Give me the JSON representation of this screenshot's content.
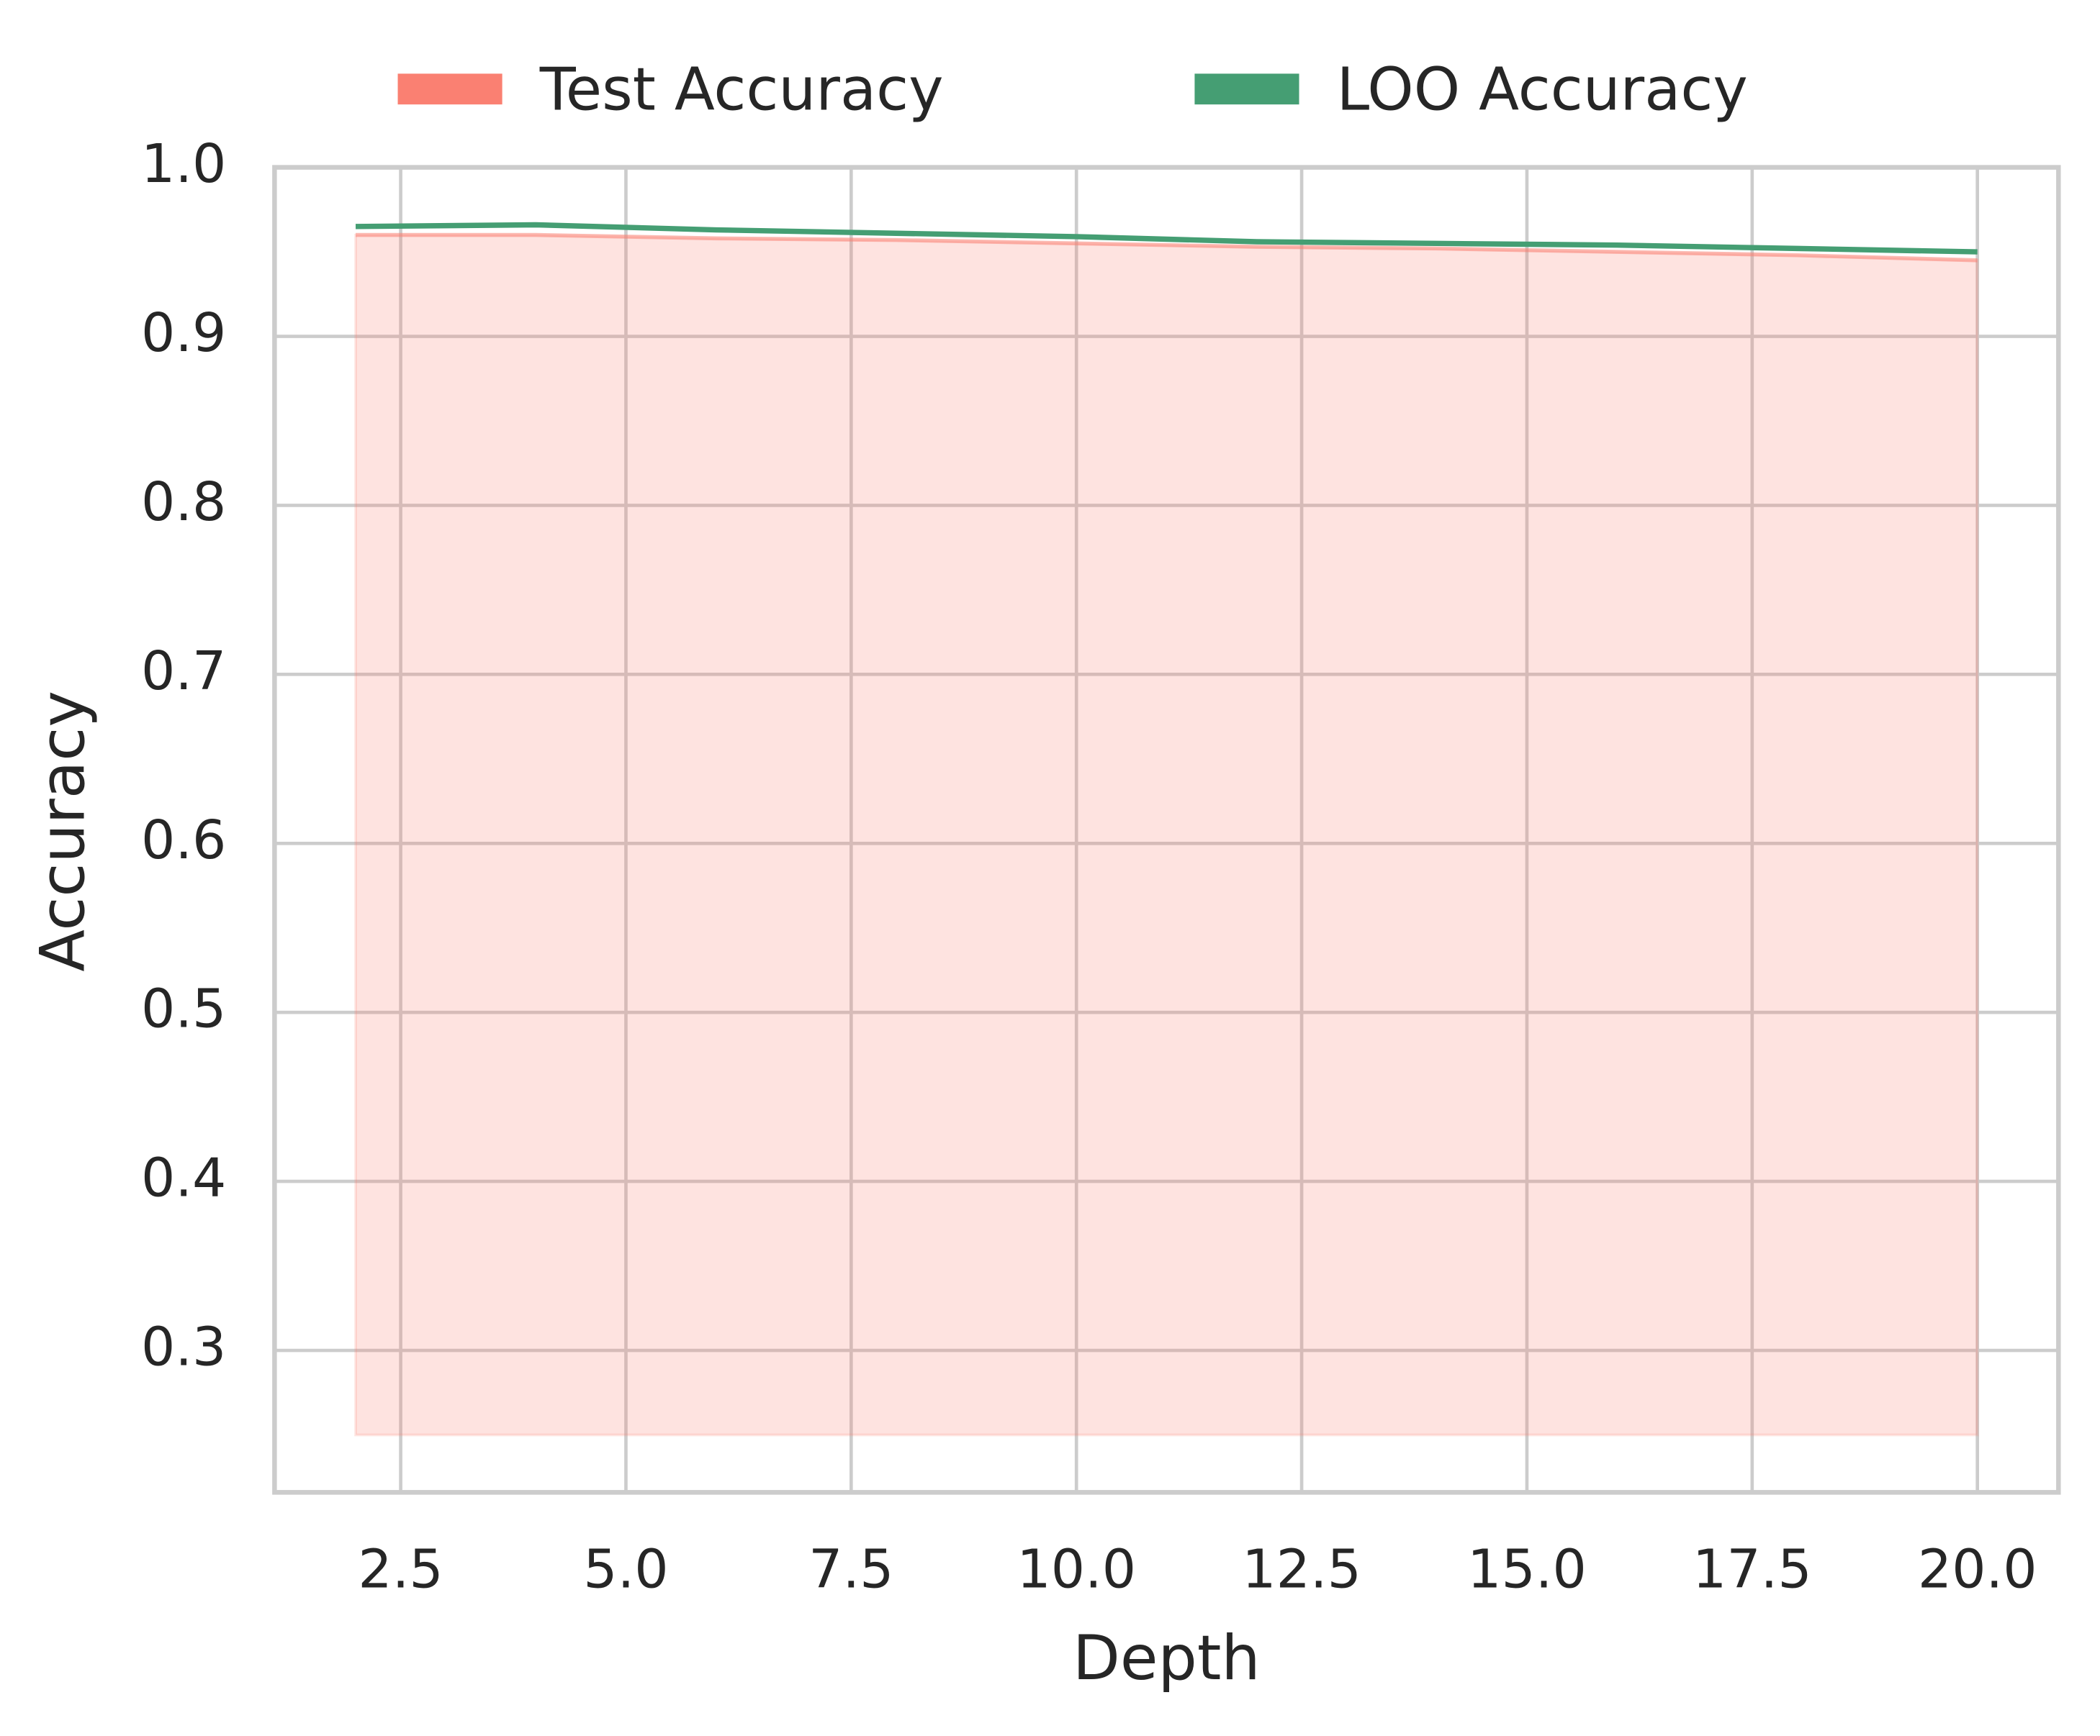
{
  "chart_data": {
    "type": "area",
    "x_label": "Depth",
    "y_label": "Accuracy",
    "x": [
      2,
      4,
      6,
      8,
      10,
      12,
      14,
      16,
      18,
      20
    ],
    "series": [
      {
        "name": "Test Accuracy",
        "color": "#fa8072",
        "fill": true,
        "values": [
          0.96,
          0.96,
          0.958,
          0.957,
          0.955,
          0.953,
          0.952,
          0.95,
          0.948,
          0.945
        ]
      },
      {
        "name": "LOO Accuracy",
        "color": "#459e73",
        "fill": false,
        "values": [
          0.965,
          0.966,
          0.963,
          0.961,
          0.959,
          0.956,
          0.955,
          0.954,
          0.952,
          0.95
        ]
      }
    ],
    "area_base": 0.25,
    "xlim": [
      1.1,
      20.9
    ],
    "ylim": [
      0.216,
      1.0
    ],
    "xticks": [
      2.5,
      {
        "value": 5,
        "label": "5.0"
      },
      7.5,
      {
        "value": 10,
        "label": "10.0"
      },
      12.5,
      {
        "value": 15,
        "label": "15.0"
      },
      17.5,
      {
        "value": 20,
        "label": "20.0"
      }
    ],
    "yticks": [
      0.3,
      0.4,
      0.5,
      0.6,
      0.7,
      0.8,
      0.9,
      {
        "value": 1,
        "label": "1.0"
      }
    ],
    "grid": true,
    "legend": "top"
  }
}
